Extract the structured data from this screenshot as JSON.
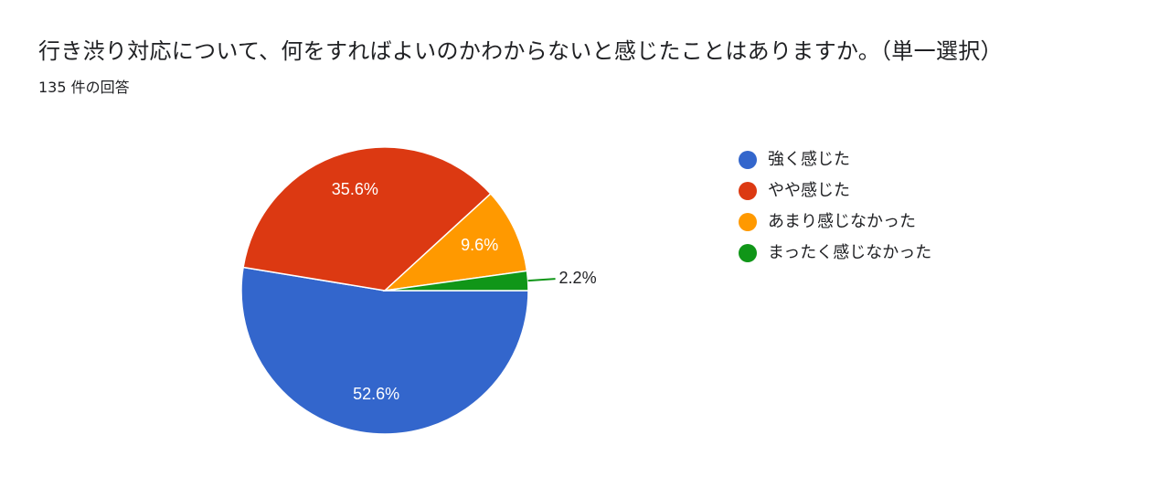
{
  "header": {
    "title": "行き渋り対応について、何をすればよいのかわからないと感じたことはありますか。（単一選択）",
    "response_count": "135 件の回答"
  },
  "chart_data": {
    "type": "pie",
    "title": "行き渋り対応について、何をすればよいのかわからないと感じたことはありますか。（単一選択）",
    "slices": [
      {
        "name": "強く感じた",
        "value": 52.6,
        "label": "52.6%",
        "color": "#3366cc"
      },
      {
        "name": "やや感じた",
        "value": 35.6,
        "label": "35.6%",
        "color": "#dc3912"
      },
      {
        "name": "あまり感じなかった",
        "value": 9.6,
        "label": "9.6%",
        "color": "#ff9900"
      },
      {
        "name": "まったく感じなかった",
        "value": 2.2,
        "label": "2.2%",
        "color": "#109618"
      }
    ],
    "legend_position": "right"
  }
}
